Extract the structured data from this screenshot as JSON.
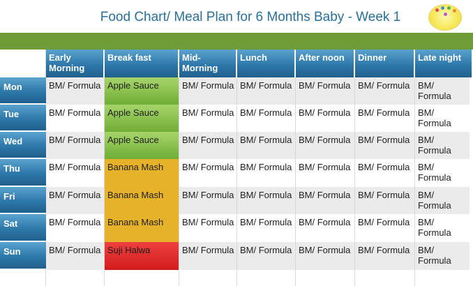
{
  "title": "Food Chart/ Meal Plan for 6 Months Baby - Week 1",
  "logo": {
    "label": "logo-icon"
  },
  "columns": [
    "",
    "Early Morning",
    "Break fast",
    "Mid-Morning",
    "Lunch",
    "After noon",
    "Dinner",
    "Late night"
  ],
  "rows": [
    {
      "day": "Mon",
      "cells": [
        "BM/ Formula",
        "Apple Sauce",
        "BM/ Formula",
        "BM/ Formula",
        "BM/ Formula",
        "BM/ Formula",
        "BM/ Formula"
      ]
    },
    {
      "day": "Tue",
      "cells": [
        "BM/ Formula",
        "Apple Sauce",
        "BM/ Formula",
        "BM/ Formula",
        "BM/ Formula",
        "BM/ Formula",
        "BM/ Formula"
      ]
    },
    {
      "day": "Wed",
      "cells": [
        "BM/ Formula",
        "Apple Sauce",
        "BM/ Formula",
        "BM/ Formula",
        "BM/ Formula",
        "BM/ Formula",
        "BM/ Formula"
      ]
    },
    {
      "day": "Thu",
      "cells": [
        "BM/ Formula",
        "Banana Mash",
        "BM/ Formula",
        "BM/ Formula",
        "BM/ Formula",
        "BM/ Formula",
        "BM/ Formula"
      ]
    },
    {
      "day": "Fri",
      "cells": [
        "BM/ Formula",
        "Banana Mash",
        "BM/ Formula",
        "BM/ Formula",
        "BM/ Formula",
        "BM/ Formula",
        "BM/ Formula"
      ]
    },
    {
      "day": "Sat",
      "cells": [
        "BM/ Formula",
        "Banana Mash",
        "BM/ Formula",
        "BM/ Formula",
        "BM/ Formula",
        "BM/ Formula",
        "BM/ Formula"
      ]
    },
    {
      "day": "Sun",
      "cells": [
        "BM/ Formula",
        "Suji Halwa",
        "BM/ Formula",
        "BM/ Formula",
        "BM/ Formula",
        "BM/ Formula",
        "BM/ Formula"
      ]
    }
  ],
  "colors": {
    "title": "#2a6f97",
    "header_blue": "#2e78aa",
    "green_bar": "#6f9b39",
    "apple_sauce": "#6fae36",
    "banana_mash": "#e6b22a",
    "suji_halwa": "#d21b1b"
  }
}
